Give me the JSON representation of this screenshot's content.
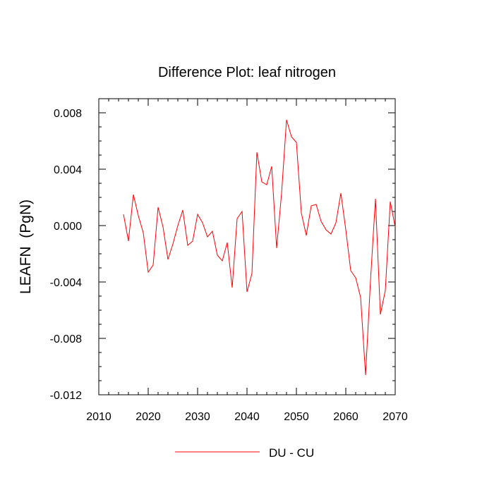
{
  "chart_data": {
    "type": "line",
    "title": "Difference Plot: leaf nitrogen",
    "xlabel": "",
    "ylabel": "LEAFN  (PgN)",
    "xlim": [
      2010,
      2070
    ],
    "ylim": [
      -0.012,
      0.009
    ],
    "x_ticks": [
      2010,
      2020,
      2030,
      2040,
      2050,
      2060,
      2070
    ],
    "y_ticks": [
      -0.012,
      -0.008,
      -0.004,
      0.0,
      0.004,
      0.008
    ],
    "y_tick_labels": [
      "-0.012",
      "-0.008",
      "-0.004",
      "0.000",
      "0.004",
      "0.008"
    ],
    "grid": false,
    "legend_position": "bottom-center",
    "series": [
      {
        "name": "DU - CU",
        "color": "#ff0000",
        "x": [
          2015,
          2016,
          2017,
          2018,
          2019,
          2020,
          2021,
          2022,
          2023,
          2024,
          2025,
          2026,
          2027,
          2028,
          2029,
          2030,
          2031,
          2032,
          2033,
          2034,
          2035,
          2036,
          2037,
          2038,
          2039,
          2040,
          2041,
          2042,
          2043,
          2044,
          2045,
          2046,
          2047,
          2048,
          2049,
          2050,
          2051,
          2052,
          2053,
          2054,
          2055,
          2056,
          2057,
          2058,
          2059,
          2060,
          2061,
          2062,
          2063,
          2064,
          2065,
          2066,
          2067,
          2068,
          2069,
          2070
        ],
        "y": [
          0.0008,
          -0.0011,
          0.0022,
          0.0007,
          -0.0005,
          -0.0033,
          -0.0028,
          0.0013,
          -0.0001,
          -0.0024,
          -0.0013,
          0.0,
          0.0011,
          -0.0014,
          -0.0011,
          0.0008,
          0.0002,
          -0.0008,
          -0.0004,
          -0.0021,
          -0.0025,
          -0.0012,
          -0.0044,
          0.0005,
          0.001,
          -0.0047,
          -0.0034,
          0.0052,
          0.0031,
          0.0029,
          0.0042,
          -0.0016,
          0.0023,
          0.0075,
          0.0063,
          0.0059,
          0.0009,
          -0.0007,
          0.0014,
          0.0015,
          0.0003,
          -0.0003,
          -0.0006,
          0.0002,
          0.0023,
          -0.0003,
          -0.0032,
          -0.0037,
          -0.0051,
          -0.0106,
          -0.0039,
          0.0019,
          -0.0063,
          -0.0046,
          0.0017,
          -0.0001
        ]
      }
    ]
  }
}
